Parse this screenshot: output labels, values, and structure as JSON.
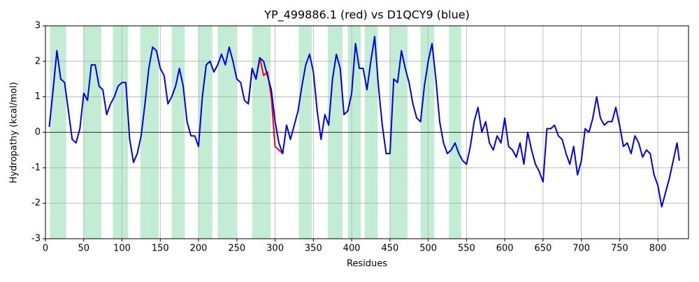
{
  "chart_data": {
    "type": "line",
    "title": "YP_499886.1 (red) vs D1QCY9 (blue)",
    "xlabel": "Residues",
    "ylabel": "Hydropathy (kcal/mol)",
    "xlim": [
      0,
      840
    ],
    "ylim": [
      -3,
      3
    ],
    "xticks": [
      0,
      50,
      100,
      150,
      200,
      250,
      300,
      350,
      400,
      450,
      500,
      550,
      600,
      650,
      700,
      750,
      800
    ],
    "yticks": [
      -3,
      -2,
      -1,
      0,
      1,
      2,
      3
    ],
    "grid": true,
    "zero_line": true,
    "region_color": "#c2ecd3",
    "regions": [
      [
        6,
        27
      ],
      [
        50,
        73
      ],
      [
        88,
        108
      ],
      [
        124,
        148
      ],
      [
        165,
        182
      ],
      [
        200,
        218
      ],
      [
        225,
        249
      ],
      [
        270,
        294
      ],
      [
        331,
        348
      ],
      [
        369,
        388
      ],
      [
        395,
        412
      ],
      [
        417,
        434
      ],
      [
        450,
        473
      ],
      [
        490,
        508
      ],
      [
        527,
        543
      ]
    ],
    "series": [
      {
        "name": "YP_499886.1",
        "color": "#ff0000",
        "x": [
          265,
          270,
          275,
          280,
          285,
          290,
          295,
          300,
          305,
          310
        ],
        "values": [
          0.8,
          1.8,
          1.5,
          2.1,
          1.6,
          1.7,
          1.0,
          -0.4,
          -0.5,
          -0.6
        ]
      },
      {
        "name": "D1QCY9",
        "color": "#0000dd",
        "x": [
          5,
          10,
          15,
          20,
          25,
          30,
          35,
          40,
          45,
          50,
          55,
          60,
          65,
          70,
          75,
          80,
          85,
          90,
          95,
          100,
          105,
          110,
          115,
          120,
          125,
          130,
          135,
          140,
          145,
          150,
          155,
          160,
          165,
          170,
          175,
          180,
          185,
          190,
          195,
          200,
          205,
          210,
          215,
          220,
          225,
          230,
          235,
          240,
          245,
          250,
          255,
          260,
          265,
          270,
          275,
          280,
          285,
          290,
          295,
          300,
          305,
          310,
          315,
          320,
          325,
          330,
          335,
          340,
          345,
          350,
          355,
          360,
          365,
          370,
          375,
          380,
          385,
          390,
          395,
          400,
          405,
          410,
          415,
          420,
          425,
          430,
          435,
          440,
          445,
          450,
          455,
          460,
          465,
          470,
          475,
          480,
          485,
          490,
          495,
          500,
          505,
          510,
          515,
          520,
          525,
          530,
          535,
          540,
          545,
          550,
          555,
          560,
          565,
          570,
          575,
          580,
          585,
          590,
          595,
          600,
          605,
          610,
          615,
          620,
          625,
          630,
          635,
          640,
          645,
          650,
          655,
          660,
          665,
          670,
          675,
          680,
          685,
          690,
          695,
          700,
          705,
          710,
          715,
          720,
          725,
          730,
          735,
          740,
          745,
          750,
          755,
          760,
          765,
          770,
          775,
          780,
          785,
          790,
          795,
          800,
          805,
          810,
          815,
          820,
          825,
          828
        ],
        "values": [
          0.15,
          1.2,
          2.3,
          1.5,
          1.4,
          0.6,
          -0.2,
          -0.3,
          0.1,
          1.1,
          0.9,
          1.9,
          1.9,
          1.3,
          1.2,
          0.5,
          0.8,
          1.0,
          1.3,
          1.4,
          1.4,
          -0.2,
          -0.85,
          -0.6,
          -0.1,
          0.8,
          1.8,
          2.4,
          2.3,
          1.8,
          1.6,
          0.8,
          1.0,
          1.3,
          1.8,
          1.3,
          0.3,
          -0.1,
          -0.1,
          -0.4,
          1.0,
          1.9,
          2.0,
          1.7,
          1.9,
          2.2,
          1.9,
          2.4,
          2.0,
          1.5,
          1.4,
          0.9,
          0.8,
          1.8,
          1.5,
          2.1,
          2.0,
          1.6,
          1.2,
          0.3,
          -0.3,
          -0.6,
          0.2,
          -0.2,
          0.2,
          0.6,
          1.3,
          1.9,
          2.2,
          1.7,
          0.6,
          -0.2,
          0.5,
          0.2,
          1.5,
          2.2,
          1.8,
          0.5,
          0.6,
          1.1,
          2.5,
          1.8,
          1.8,
          1.2,
          2.0,
          2.7,
          1.3,
          0.2,
          -0.6,
          -0.6,
          1.5,
          1.4,
          2.3,
          1.8,
          1.4,
          0.8,
          0.4,
          0.3,
          1.3,
          2.0,
          2.5,
          1.5,
          0.3,
          -0.3,
          -0.6,
          -0.5,
          -0.3,
          -0.6,
          -0.8,
          -0.9,
          -0.4,
          0.3,
          0.7,
          0.0,
          0.3,
          -0.3,
          -0.5,
          -0.1,
          -0.3,
          0.4,
          -0.4,
          -0.5,
          -0.7,
          -0.3,
          -0.9,
          0.0,
          -0.5,
          -0.9,
          -1.1,
          -1.4,
          0.1,
          0.1,
          0.2,
          -0.1,
          -0.2,
          -0.6,
          -0.9,
          -0.4,
          -1.2,
          -0.8,
          0.1,
          0.0,
          0.4,
          1.0,
          0.4,
          0.2,
          0.3,
          0.3,
          0.7,
          0.2,
          -0.4,
          -0.3,
          -0.6,
          -0.1,
          -0.3,
          -0.7,
          -0.5,
          -0.6,
          -1.2,
          -1.5,
          -2.1,
          -1.7,
          -1.3,
          -0.8,
          -0.3,
          -0.8
        ]
      }
    ]
  }
}
